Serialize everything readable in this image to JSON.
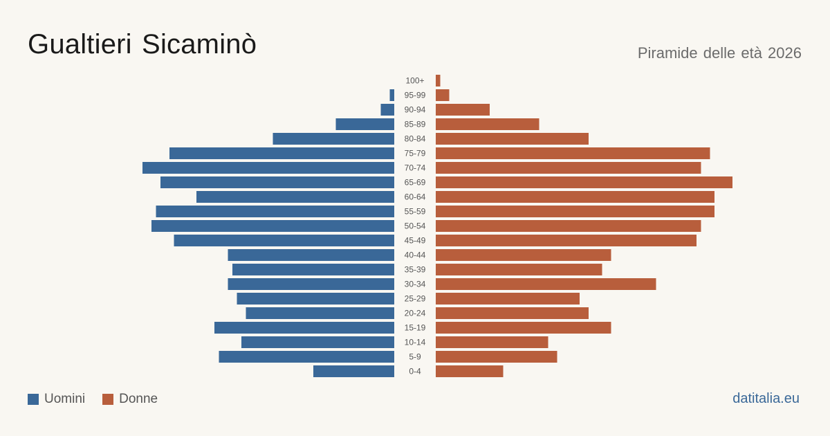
{
  "header": {
    "title": "Gualtieri Sicaminò",
    "subtitle": "Piramide delle età 2026"
  },
  "legend": {
    "men": {
      "label": "Uomini",
      "color": "#3a6898"
    },
    "women": {
      "label": "Donne",
      "color": "#b85e3c"
    }
  },
  "footer": {
    "source": "datitalia.eu"
  },
  "chart_data": {
    "type": "bar",
    "orientation": "horizontal-pyramid",
    "categories": [
      "100+",
      "95-99",
      "90-94",
      "85-89",
      "80-84",
      "75-79",
      "70-74",
      "65-69",
      "60-64",
      "55-59",
      "50-54",
      "45-49",
      "40-44",
      "35-39",
      "30-34",
      "25-29",
      "20-24",
      "15-19",
      "10-14",
      "5-9",
      "0-4"
    ],
    "series": [
      {
        "name": "Uomini",
        "color": "#3a6898",
        "values": [
          0,
          1,
          3,
          13,
          27,
          50,
          56,
          52,
          44,
          53,
          54,
          49,
          37,
          36,
          37,
          35,
          33,
          40,
          34,
          39,
          18
        ]
      },
      {
        "name": "Donne",
        "color": "#b85e3c",
        "values": [
          1,
          3,
          12,
          23,
          34,
          61,
          59,
          66,
          62,
          62,
          59,
          58,
          39,
          37,
          49,
          32,
          34,
          39,
          25,
          27,
          15
        ]
      }
    ],
    "legend_position": "bottom-left",
    "grid": false
  }
}
